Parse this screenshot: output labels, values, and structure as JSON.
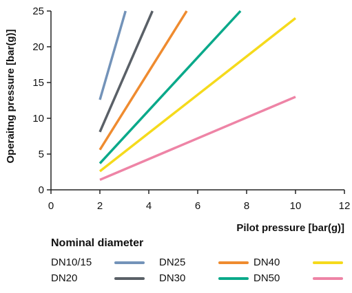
{
  "chart_data": {
    "type": "line",
    "title": "",
    "xlabel": "Pilot pressure [bar(g)]",
    "ylabel": "Operaitng pressure [bar(g)]",
    "xlim": [
      0,
      12
    ],
    "ylim": [
      0,
      25
    ],
    "xticks": [
      0,
      2,
      4,
      6,
      8,
      10,
      12
    ],
    "yticks": [
      0,
      5,
      10,
      15,
      20,
      25
    ],
    "grid": false,
    "legend_title": "Nominal diameter",
    "legend_position": "bottom",
    "series": [
      {
        "name": "DN10/15",
        "color": "#7393b9",
        "x": [
          2,
          3.05
        ],
        "y": [
          12.6,
          25
        ]
      },
      {
        "name": "DN20",
        "color": "#5a6067",
        "x": [
          2,
          4.15
        ],
        "y": [
          8.1,
          25
        ]
      },
      {
        "name": "DN25",
        "color": "#ef8b2f",
        "x": [
          2,
          5.55
        ],
        "y": [
          5.6,
          25
        ]
      },
      {
        "name": "DN30",
        "color": "#0aa98a",
        "x": [
          2,
          7.75
        ],
        "y": [
          3.7,
          25
        ]
      },
      {
        "name": "DN40",
        "color": "#f5da1c",
        "x": [
          2,
          10
        ],
        "y": [
          2.6,
          24
        ]
      },
      {
        "name": "DN50",
        "color": "#ee84a6",
        "x": [
          2,
          10
        ],
        "y": [
          1.4,
          13
        ]
      }
    ]
  }
}
